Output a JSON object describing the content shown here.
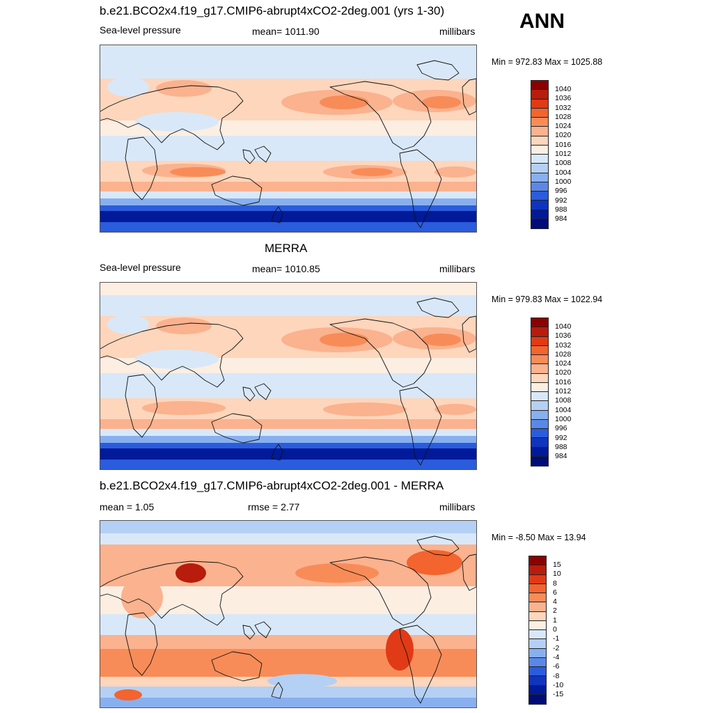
{
  "season": "ANN",
  "panels": [
    {
      "title": "b.e21.BCO2x4.f19_g17.CMIP6-abrupt4xCO2-2deg.001 (yrs 1-30)",
      "left_label": "Sea-level pressure",
      "center_label": "mean= 1011.90",
      "right_label": "millibars",
      "minmax": "Min = 972.83 Max = 1025.88",
      "map_kind": "model"
    },
    {
      "title": "MERRA",
      "left_label": "Sea-level pressure",
      "center_label": "mean= 1010.85",
      "right_label": "millibars",
      "minmax": "Min = 979.83 Max = 1022.94",
      "map_kind": "obs"
    },
    {
      "title": "b.e21.BCO2x4.f19_g17.CMIP6-abrupt4xCO2-2deg.001 - MERRA",
      "left_label": "mean =   1.05",
      "center_label": "rmse =   2.77",
      "right_label": "millibars",
      "minmax": "Min =  -8.50 Max =  13.94",
      "map_kind": "diff"
    }
  ],
  "colorbar_abs": {
    "labels": [
      "1040",
      "1036",
      "1032",
      "1028",
      "1024",
      "1020",
      "1016",
      "1012",
      "1008",
      "1004",
      "1000",
      "996",
      "992",
      "988",
      "984"
    ],
    "colors": [
      "#8b0000",
      "#b81c0c",
      "#e03a16",
      "#f3642e",
      "#f88c58",
      "#fbb28e",
      "#fdd6bc",
      "#fdeee2",
      "#d8e8f8",
      "#b4d0f4",
      "#88b0ef",
      "#5a88e8",
      "#2a5cdc",
      "#0e34c0",
      "#001a9a",
      "#000c78"
    ]
  },
  "colorbar_diff": {
    "labels": [
      "15",
      "10",
      "8",
      "6",
      "4",
      "2",
      "1",
      "0",
      "-1",
      "-2",
      "-4",
      "-6",
      "-8",
      "-10",
      "-15"
    ],
    "colors": [
      "#8b0000",
      "#b81c0c",
      "#e03a16",
      "#f3642e",
      "#f88c58",
      "#fbb28e",
      "#fdd6bc",
      "#fdeee2",
      "#d8e8f8",
      "#b4d0f4",
      "#88b0ef",
      "#5a88e8",
      "#2a5cdc",
      "#0e34c0",
      "#001a9a",
      "#000c78"
    ]
  }
}
